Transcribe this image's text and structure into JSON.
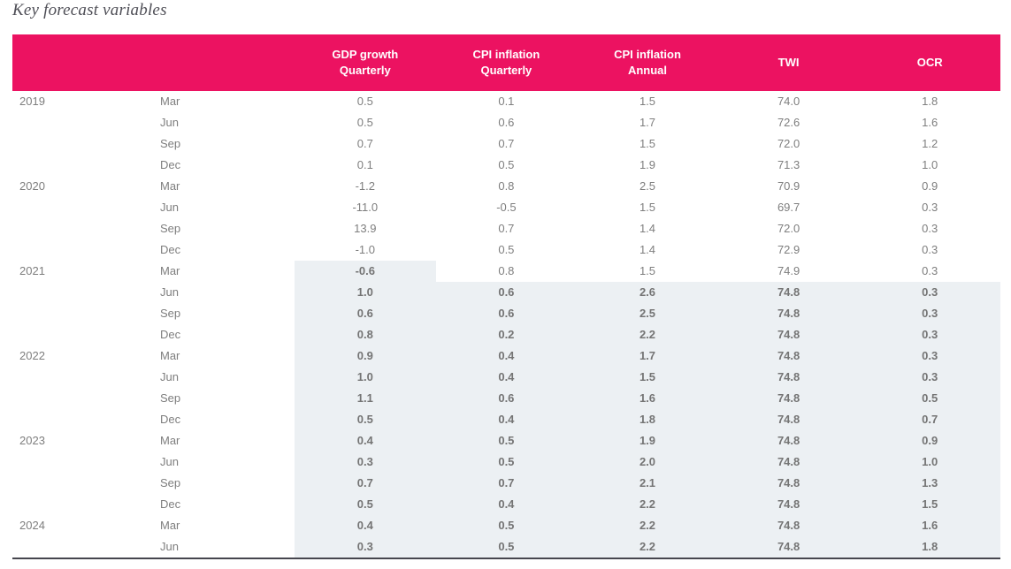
{
  "title": "Key forecast variables",
  "colors": {
    "header_bg": "#ec1261",
    "header_text": "#ffffff",
    "forecast_shading": "#ecf0f3",
    "body_text": "#7e7e7e",
    "forecast_text": "#747474",
    "title_text": "#4e4e56",
    "bottom_rule": "#46464e"
  },
  "chart_data": {
    "type": "table",
    "title": "Key forecast variables",
    "layout": {
      "grid": "off",
      "row_group_labels": "year shown only on first quarter of each year",
      "shading_meaning": "shaded bold cells are forecast values"
    },
    "columns": [
      {
        "title": "GDP growth",
        "subtitle": "Quarterly"
      },
      {
        "title": "CPI inflation",
        "subtitle": "Quarterly"
      },
      {
        "title": "CPI inflation",
        "subtitle": "Annual"
      },
      {
        "title": "TWI",
        "subtitle": ""
      },
      {
        "title": "OCR",
        "subtitle": ""
      }
    ],
    "rows": [
      {
        "year": "2019",
        "quarter": "Mar",
        "values": [
          "0.5",
          "0.1",
          "1.5",
          "74.0",
          "1.8"
        ],
        "forecast": "none"
      },
      {
        "year": "",
        "quarter": "Jun",
        "values": [
          "0.5",
          "0.6",
          "1.7",
          "72.6",
          "1.6"
        ],
        "forecast": "none"
      },
      {
        "year": "",
        "quarter": "Sep",
        "values": [
          "0.7",
          "0.7",
          "1.5",
          "72.0",
          "1.2"
        ],
        "forecast": "none"
      },
      {
        "year": "",
        "quarter": "Dec",
        "values": [
          "0.1",
          "0.5",
          "1.9",
          "71.3",
          "1.0"
        ],
        "forecast": "none"
      },
      {
        "year": "2020",
        "quarter": "Mar",
        "values": [
          "-1.2",
          "0.8",
          "2.5",
          "70.9",
          "0.9"
        ],
        "forecast": "none"
      },
      {
        "year": "",
        "quarter": "Jun",
        "values": [
          "-11.0",
          "-0.5",
          "1.5",
          "69.7",
          "0.3"
        ],
        "forecast": "none"
      },
      {
        "year": "",
        "quarter": "Sep",
        "values": [
          "13.9",
          "0.7",
          "1.4",
          "72.0",
          "0.3"
        ],
        "forecast": "none"
      },
      {
        "year": "",
        "quarter": "Dec",
        "values": [
          "-1.0",
          "0.5",
          "1.4",
          "72.9",
          "0.3"
        ],
        "forecast": "none"
      },
      {
        "year": "2021",
        "quarter": "Mar",
        "values": [
          "-0.6",
          "0.8",
          "1.5",
          "74.9",
          "0.3"
        ],
        "forecast": "gdp-only"
      },
      {
        "year": "",
        "quarter": "Jun",
        "values": [
          "1.0",
          "0.6",
          "2.6",
          "74.8",
          "0.3"
        ],
        "forecast": "all"
      },
      {
        "year": "",
        "quarter": "Sep",
        "values": [
          "0.6",
          "0.6",
          "2.5",
          "74.8",
          "0.3"
        ],
        "forecast": "all"
      },
      {
        "year": "",
        "quarter": "Dec",
        "values": [
          "0.8",
          "0.2",
          "2.2",
          "74.8",
          "0.3"
        ],
        "forecast": "all"
      },
      {
        "year": "2022",
        "quarter": "Mar",
        "values": [
          "0.9",
          "0.4",
          "1.7",
          "74.8",
          "0.3"
        ],
        "forecast": "all"
      },
      {
        "year": "",
        "quarter": "Jun",
        "values": [
          "1.0",
          "0.4",
          "1.5",
          "74.8",
          "0.3"
        ],
        "forecast": "all"
      },
      {
        "year": "",
        "quarter": "Sep",
        "values": [
          "1.1",
          "0.6",
          "1.6",
          "74.8",
          "0.5"
        ],
        "forecast": "all"
      },
      {
        "year": "",
        "quarter": "Dec",
        "values": [
          "0.5",
          "0.4",
          "1.8",
          "74.8",
          "0.7"
        ],
        "forecast": "all"
      },
      {
        "year": "2023",
        "quarter": "Mar",
        "values": [
          "0.4",
          "0.5",
          "1.9",
          "74.8",
          "0.9"
        ],
        "forecast": "all"
      },
      {
        "year": "",
        "quarter": "Jun",
        "values": [
          "0.3",
          "0.5",
          "2.0",
          "74.8",
          "1.0"
        ],
        "forecast": "all"
      },
      {
        "year": "",
        "quarter": "Sep",
        "values": [
          "0.7",
          "0.7",
          "2.1",
          "74.8",
          "1.3"
        ],
        "forecast": "all"
      },
      {
        "year": "",
        "quarter": "Dec",
        "values": [
          "0.5",
          "0.4",
          "2.2",
          "74.8",
          "1.5"
        ],
        "forecast": "all"
      },
      {
        "year": "2024",
        "quarter": "Mar",
        "values": [
          "0.4",
          "0.5",
          "2.2",
          "74.8",
          "1.6"
        ],
        "forecast": "all"
      },
      {
        "year": "",
        "quarter": "Jun",
        "values": [
          "0.3",
          "0.5",
          "2.2",
          "74.8",
          "1.8"
        ],
        "forecast": "all"
      }
    ]
  }
}
